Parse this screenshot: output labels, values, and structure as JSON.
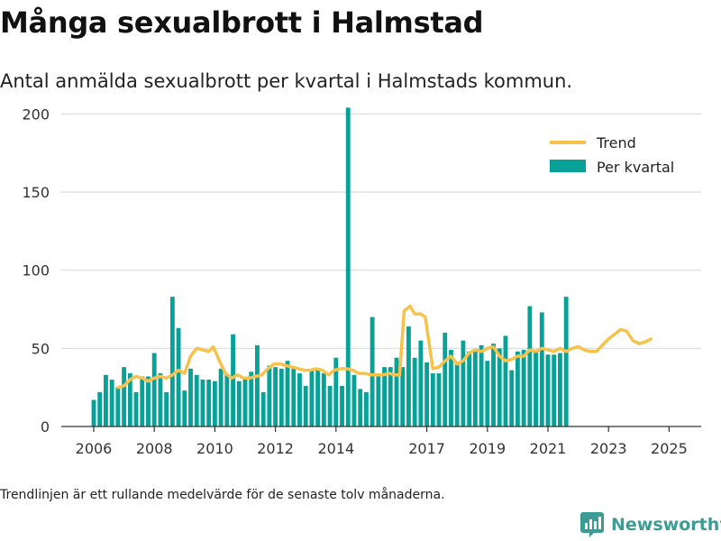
{
  "title": "Många sexualbrott i Halmstad",
  "subtitle": "Antal anmälda sexualbrott per kvartal i Halmstads kommun.",
  "note": "Trendlinjen är ett rullande medelvärde för de senaste tolv månaderna.",
  "brand": "Newsworthy",
  "colors": {
    "bars": "#08a197",
    "trend": "#f7c24b",
    "grid": "#d9d9d9",
    "brand": "#3a9c94"
  },
  "chart_data": {
    "type": "bar",
    "title": "Antal anmälda sexualbrott per kvartal",
    "xlabel": "",
    "ylabel": "",
    "ylim": [
      0,
      210
    ],
    "y_ticks": [
      0,
      50,
      100,
      150,
      200
    ],
    "x_ticks": [
      {
        "label": "2006",
        "x": 2006.0
      },
      {
        "label": "2008",
        "x": 2008.0
      },
      {
        "label": "2010",
        "x": 2010.0
      },
      {
        "label": "2012",
        "x": 2012.0
      },
      {
        "label": "2014",
        "x": 2014.0
      },
      {
        "label": "2017",
        "x": 2017.0
      },
      {
        "label": "2019",
        "x": 2019.0
      },
      {
        "label": "2021",
        "x": 2021.0
      },
      {
        "label": "2023",
        "x": 2023.0
      },
      {
        "label": "2025",
        "x": 2025.0
      }
    ],
    "legend": [
      {
        "name": "Trend",
        "kind": "line"
      },
      {
        "name": "Per kvartal",
        "kind": "bar"
      }
    ],
    "series": [
      {
        "name": "Per kvartal",
        "start_year": 2006.0,
        "step": 0.2,
        "values": [
          17,
          22,
          33,
          30,
          25,
          38,
          34,
          22,
          32,
          32,
          47,
          34,
          22,
          83,
          63,
          23,
          37,
          33,
          30,
          30,
          29,
          37,
          33,
          59,
          29,
          32,
          35,
          52,
          22,
          39,
          38,
          37,
          42,
          37,
          34,
          26,
          37,
          37,
          34,
          26,
          44,
          26,
          204,
          33,
          24,
          22,
          70,
          34,
          38,
          38,
          44,
          38,
          64,
          44,
          55,
          41,
          34,
          34,
          60,
          49,
          40,
          55,
          48,
          49,
          52,
          42,
          53,
          50,
          58,
          36,
          48,
          49,
          77,
          49,
          73,
          46,
          46,
          47,
          83
        ]
      },
      {
        "name": "Trend",
        "points": [
          [
            2006.8,
            25
          ],
          [
            2007.0,
            26
          ],
          [
            2007.2,
            30
          ],
          [
            2007.4,
            32
          ],
          [
            2007.6,
            31
          ],
          [
            2007.8,
            29
          ],
          [
            2008.0,
            31
          ],
          [
            2008.2,
            32
          ],
          [
            2008.4,
            31
          ],
          [
            2008.6,
            33
          ],
          [
            2008.8,
            36
          ],
          [
            2009.0,
            34
          ],
          [
            2009.2,
            45
          ],
          [
            2009.4,
            50
          ],
          [
            2009.6,
            49
          ],
          [
            2009.8,
            48
          ],
          [
            2009.95,
            51
          ],
          [
            2010.15,
            42
          ],
          [
            2010.35,
            34
          ],
          [
            2010.55,
            31
          ],
          [
            2010.75,
            33
          ],
          [
            2010.95,
            31
          ],
          [
            2011.15,
            31
          ],
          [
            2011.35,
            32
          ],
          [
            2011.55,
            33
          ],
          [
            2011.75,
            37
          ],
          [
            2011.95,
            40
          ],
          [
            2012.15,
            40
          ],
          [
            2012.35,
            39
          ],
          [
            2012.55,
            38
          ],
          [
            2012.75,
            37
          ],
          [
            2012.95,
            36
          ],
          [
            2013.15,
            36
          ],
          [
            2013.35,
            37
          ],
          [
            2013.55,
            36
          ],
          [
            2013.75,
            33
          ],
          [
            2013.95,
            36
          ],
          [
            2014.15,
            37
          ],
          [
            2014.35,
            37
          ],
          [
            2014.55,
            36
          ],
          [
            2014.75,
            34
          ],
          [
            2014.95,
            34
          ],
          [
            2015.15,
            33
          ],
          [
            2015.35,
            33
          ],
          [
            2015.55,
            33
          ],
          [
            2015.75,
            34
          ],
          [
            2015.95,
            33
          ],
          [
            2016.1,
            33
          ],
          [
            2016.25,
            74
          ],
          [
            2016.45,
            77
          ],
          [
            2016.6,
            72
          ],
          [
            2016.8,
            72
          ],
          [
            2016.95,
            70
          ],
          [
            2017.2,
            37
          ],
          [
            2017.4,
            38
          ],
          [
            2017.6,
            42
          ],
          [
            2017.8,
            45
          ],
          [
            2018.0,
            40
          ],
          [
            2018.2,
            42
          ],
          [
            2018.4,
            47
          ],
          [
            2018.6,
            49
          ],
          [
            2018.8,
            48
          ],
          [
            2019.0,
            50
          ],
          [
            2019.2,
            51
          ],
          [
            2019.4,
            45
          ],
          [
            2019.6,
            42
          ],
          [
            2019.8,
            43
          ],
          [
            2020.0,
            45
          ],
          [
            2020.2,
            45
          ],
          [
            2020.4,
            49
          ],
          [
            2020.6,
            48
          ],
          [
            2020.8,
            50
          ],
          [
            2021.0,
            49
          ],
          [
            2021.2,
            48
          ],
          [
            2021.4,
            50
          ],
          [
            2021.6,
            48
          ],
          [
            2021.8,
            50
          ],
          [
            2022.0,
            51
          ],
          [
            2022.2,
            49
          ],
          [
            2022.4,
            48
          ],
          [
            2022.6,
            48
          ],
          [
            2022.8,
            52
          ],
          [
            2023.0,
            56
          ],
          [
            2023.2,
            59
          ],
          [
            2023.4,
            62
          ],
          [
            2023.6,
            61
          ],
          [
            2023.8,
            55
          ],
          [
            2024.0,
            53
          ],
          [
            2024.2,
            54
          ],
          [
            2024.4,
            56
          ]
        ]
      }
    ]
  }
}
